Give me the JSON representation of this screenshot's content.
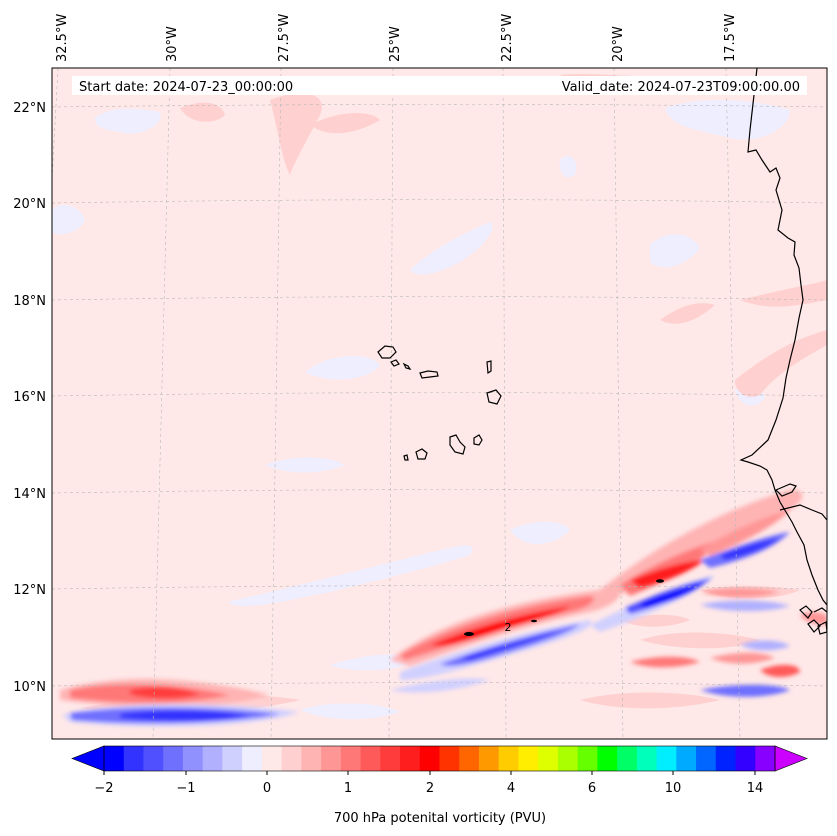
{
  "map": {
    "start_date": "Start date: 2024-07-23_00:00:00",
    "valid_date": "Valid_date: 2024-07-23T09:00:00.00",
    "lon_labels": [
      "32.5°W",
      "30°W",
      "27.5°W",
      "25°W",
      "22.5°W",
      "20°W",
      "17.5°W"
    ],
    "lat_labels": [
      "22°N",
      "20°N",
      "18°N",
      "16°N",
      "14°N",
      "12°N",
      "10°N"
    ],
    "contour_label": "2",
    "background_color": "#ffe8e8"
  },
  "colorbar": {
    "title": "700 hPa potenital vorticity (PVU)",
    "tick_labels": [
      "−2",
      "−1",
      "0",
      "1",
      "2",
      "4",
      "6",
      "10",
      "14"
    ],
    "colors": [
      "#0000ff",
      "#3333ff",
      "#5050ff",
      "#7070ff",
      "#9090ff",
      "#b0b0ff",
      "#d0d0ff",
      "#eeeeff",
      "#ffe8e8",
      "#ffd0d0",
      "#ffb4b4",
      "#ff9696",
      "#ff7878",
      "#ff5a5a",
      "#ff3c3c",
      "#ff1e1e",
      "#ff0000",
      "#ff3300",
      "#ff6600",
      "#ff9900",
      "#ffcc00",
      "#ffee00",
      "#ddff00",
      "#aaff00",
      "#66ff00",
      "#00ff00",
      "#00ff66",
      "#00ffbb",
      "#00eeff",
      "#00aaff",
      "#0066ff",
      "#0022ff",
      "#3300ff",
      "#8800ff"
    ],
    "min_color": "#0000ff",
    "max_color": "#cc00ff"
  }
}
